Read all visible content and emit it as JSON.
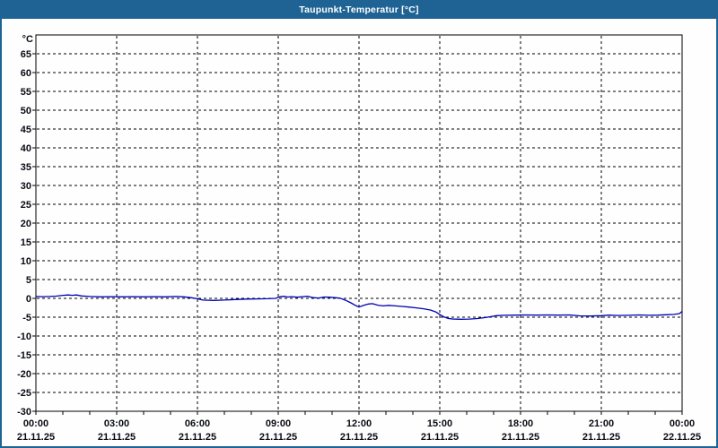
{
  "window": {
    "title": "Taupunkt-Temperatur [°C]"
  },
  "colors": {
    "titlebar_bg": "#1E6394",
    "titlebar_text": "#FFFFFF",
    "window_border": "#1E6394",
    "plot_bg": "#FDFEFD",
    "grid": "#000000",
    "axis_text": "#0A0A14",
    "series_line": "#0000B4"
  },
  "chart_data": {
    "type": "line",
    "title": "Taupunkt-Temperatur [°C]",
    "xlabel": "",
    "ylabel": "°C",
    "ylim": [
      -30,
      70
    ],
    "grid": "dashed",
    "legend": "none",
    "y_ticks": [
      -30,
      -25,
      -20,
      -15,
      -10,
      -5,
      0,
      5,
      10,
      15,
      20,
      25,
      30,
      35,
      40,
      45,
      50,
      55,
      60,
      65
    ],
    "x_axis": {
      "span_hours": 24,
      "minor_tick_every_hours": 1,
      "grid_every_hours": 3,
      "labels": [
        {
          "h": 0,
          "time": "00:00",
          "date": "21.11.25"
        },
        {
          "h": 3,
          "time": "03:00",
          "date": "21.11.25"
        },
        {
          "h": 6,
          "time": "06:00",
          "date": "21.11.25"
        },
        {
          "h": 9,
          "time": "09:00",
          "date": "21.11.25"
        },
        {
          "h": 12,
          "time": "12:00",
          "date": "21.11.25"
        },
        {
          "h": 15,
          "time": "15:00",
          "date": "21.11.25"
        },
        {
          "h": 18,
          "time": "18:00",
          "date": "21.11.25"
        },
        {
          "h": 21,
          "time": "21:00",
          "date": "21.11.25"
        },
        {
          "h": 24,
          "time": "00:00",
          "date": "22.11.25"
        }
      ]
    },
    "series": [
      {
        "name": "Taupunkt-Temperatur",
        "color": "#0000B4",
        "unit": "°C",
        "points_hour_value": [
          [
            0,
            0.5
          ],
          [
            0.25,
            0.45
          ],
          [
            0.5,
            0.5
          ],
          [
            0.75,
            0.6
          ],
          [
            1.0,
            0.8
          ],
          [
            1.2,
            0.9
          ],
          [
            1.35,
            0.8
          ],
          [
            1.5,
            0.9
          ],
          [
            1.7,
            0.65
          ],
          [
            2.0,
            0.5
          ],
          [
            2.4,
            0.4
          ],
          [
            2.8,
            0.45
          ],
          [
            3.2,
            0.4
          ],
          [
            3.6,
            0.45
          ],
          [
            4.0,
            0.4
          ],
          [
            4.4,
            0.45
          ],
          [
            4.8,
            0.4
          ],
          [
            5.2,
            0.5
          ],
          [
            5.5,
            0.4
          ],
          [
            5.75,
            0.2
          ],
          [
            6.0,
            -0.1
          ],
          [
            6.2,
            -0.45
          ],
          [
            6.6,
            -0.55
          ],
          [
            7.0,
            -0.45
          ],
          [
            7.4,
            -0.3
          ],
          [
            7.8,
            -0.2
          ],
          [
            8.2,
            -0.15
          ],
          [
            8.6,
            -0.1
          ],
          [
            8.9,
            0.0
          ],
          [
            9.05,
            0.4
          ],
          [
            9.2,
            0.55
          ],
          [
            9.35,
            0.35
          ],
          [
            9.5,
            0.45
          ],
          [
            9.7,
            0.3
          ],
          [
            9.9,
            0.45
          ],
          [
            10.1,
            0.55
          ],
          [
            10.3,
            0.2
          ],
          [
            10.5,
            0.1
          ],
          [
            10.7,
            0.35
          ],
          [
            10.9,
            0.3
          ],
          [
            11.1,
            0.2
          ],
          [
            11.3,
            0.05
          ],
          [
            11.5,
            -0.5
          ],
          [
            11.7,
            -1.2
          ],
          [
            11.85,
            -1.8
          ],
          [
            12.0,
            -2.3
          ],
          [
            12.15,
            -1.9
          ],
          [
            12.35,
            -1.5
          ],
          [
            12.5,
            -1.4
          ],
          [
            12.7,
            -1.8
          ],
          [
            12.9,
            -2.0
          ],
          [
            13.1,
            -1.85
          ],
          [
            13.35,
            -2.0
          ],
          [
            13.6,
            -2.15
          ],
          [
            13.85,
            -2.3
          ],
          [
            14.1,
            -2.5
          ],
          [
            14.4,
            -2.75
          ],
          [
            14.65,
            -3.1
          ],
          [
            14.85,
            -3.6
          ],
          [
            15.0,
            -4.3
          ],
          [
            15.15,
            -4.9
          ],
          [
            15.3,
            -5.3
          ],
          [
            15.5,
            -5.5
          ],
          [
            15.8,
            -5.55
          ],
          [
            16.1,
            -5.5
          ],
          [
            16.4,
            -5.35
          ],
          [
            16.7,
            -5.1
          ],
          [
            16.9,
            -4.85
          ],
          [
            17.1,
            -4.6
          ],
          [
            17.4,
            -4.5
          ],
          [
            17.8,
            -4.45
          ],
          [
            18.2,
            -4.4
          ],
          [
            18.6,
            -4.45
          ],
          [
            19.0,
            -4.4
          ],
          [
            19.4,
            -4.45
          ],
          [
            19.8,
            -4.4
          ],
          [
            20.2,
            -4.65
          ],
          [
            20.6,
            -4.7
          ],
          [
            21.0,
            -4.6
          ],
          [
            21.3,
            -4.45
          ],
          [
            21.6,
            -4.55
          ],
          [
            22.0,
            -4.5
          ],
          [
            22.4,
            -4.4
          ],
          [
            22.8,
            -4.5
          ],
          [
            23.1,
            -4.45
          ],
          [
            23.4,
            -4.35
          ],
          [
            23.7,
            -4.25
          ],
          [
            23.9,
            -4.05
          ],
          [
            24.0,
            -3.45
          ]
        ]
      }
    ]
  }
}
